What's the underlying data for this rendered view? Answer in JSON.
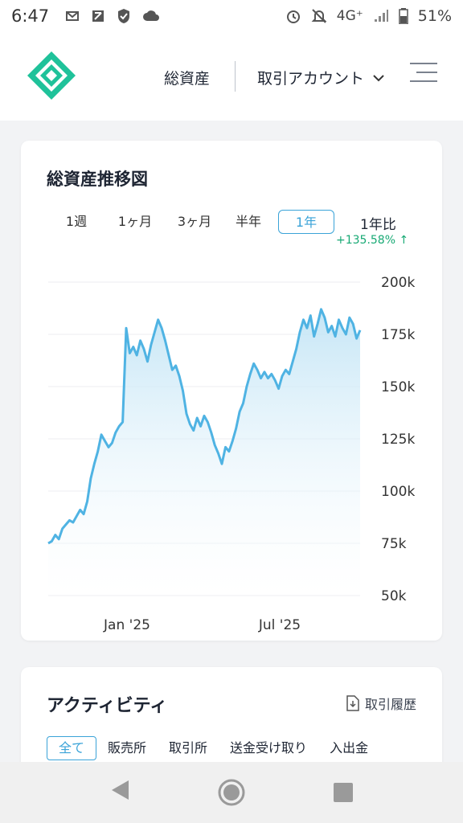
{
  "status_bar": {
    "time": "6:47",
    "network": "4G⁺",
    "battery": "51%"
  },
  "header": {
    "nav_assets": "総資産",
    "nav_account": "取引アカウント"
  },
  "chart_card": {
    "title": "総資産推移図",
    "periods": [
      "1週",
      "1ヶ月",
      "3ヶ月",
      "半年",
      "1年"
    ],
    "active_period": "1年",
    "yoy_label": "1年比",
    "yoy_value": "+135.58%"
  },
  "chart_data": {
    "type": "area",
    "x_tick_labels": [
      "Jan '25",
      "Jul '25"
    ],
    "y_tick_labels": [
      "200k",
      "175k",
      "150k",
      "125k",
      "100k",
      "75k",
      "50k"
    ],
    "ylim": [
      50000,
      200000
    ],
    "grid": true,
    "line_color": "#4fb3e3",
    "values": [
      75000,
      76000,
      79000,
      77000,
      82000,
      84000,
      86000,
      85000,
      88000,
      91000,
      89000,
      95000,
      106000,
      113000,
      119000,
      127000,
      124000,
      121000,
      123000,
      128000,
      131000,
      133000,
      178000,
      166000,
      169000,
      165000,
      172000,
      168000,
      162000,
      170000,
      176000,
      182000,
      178000,
      172000,
      165000,
      158000,
      160000,
      155000,
      148000,
      137000,
      132000,
      129000,
      135000,
      131000,
      136000,
      133000,
      128000,
      122000,
      118000,
      113000,
      121000,
      119000,
      124000,
      130000,
      138000,
      142000,
      150000,
      156000,
      161000,
      158000,
      154000,
      157000,
      154000,
      156000,
      153000,
      149000,
      155000,
      158000,
      156000,
      162000,
      168000,
      176000,
      182000,
      178000,
      184000,
      174000,
      180000,
      187000,
      183000,
      176000,
      179000,
      174000,
      182000,
      178000,
      175000,
      183000,
      180000,
      173000,
      177000
    ]
  },
  "activity": {
    "title": "アクティビティ",
    "history_link": "取引履歴",
    "filters": [
      "全て",
      "販売所",
      "取引所",
      "送金受け取り",
      "入出金"
    ]
  },
  "colors": {
    "brand": "#1fc29a",
    "accent": "#3aa3d8",
    "positive": "#17a974"
  }
}
